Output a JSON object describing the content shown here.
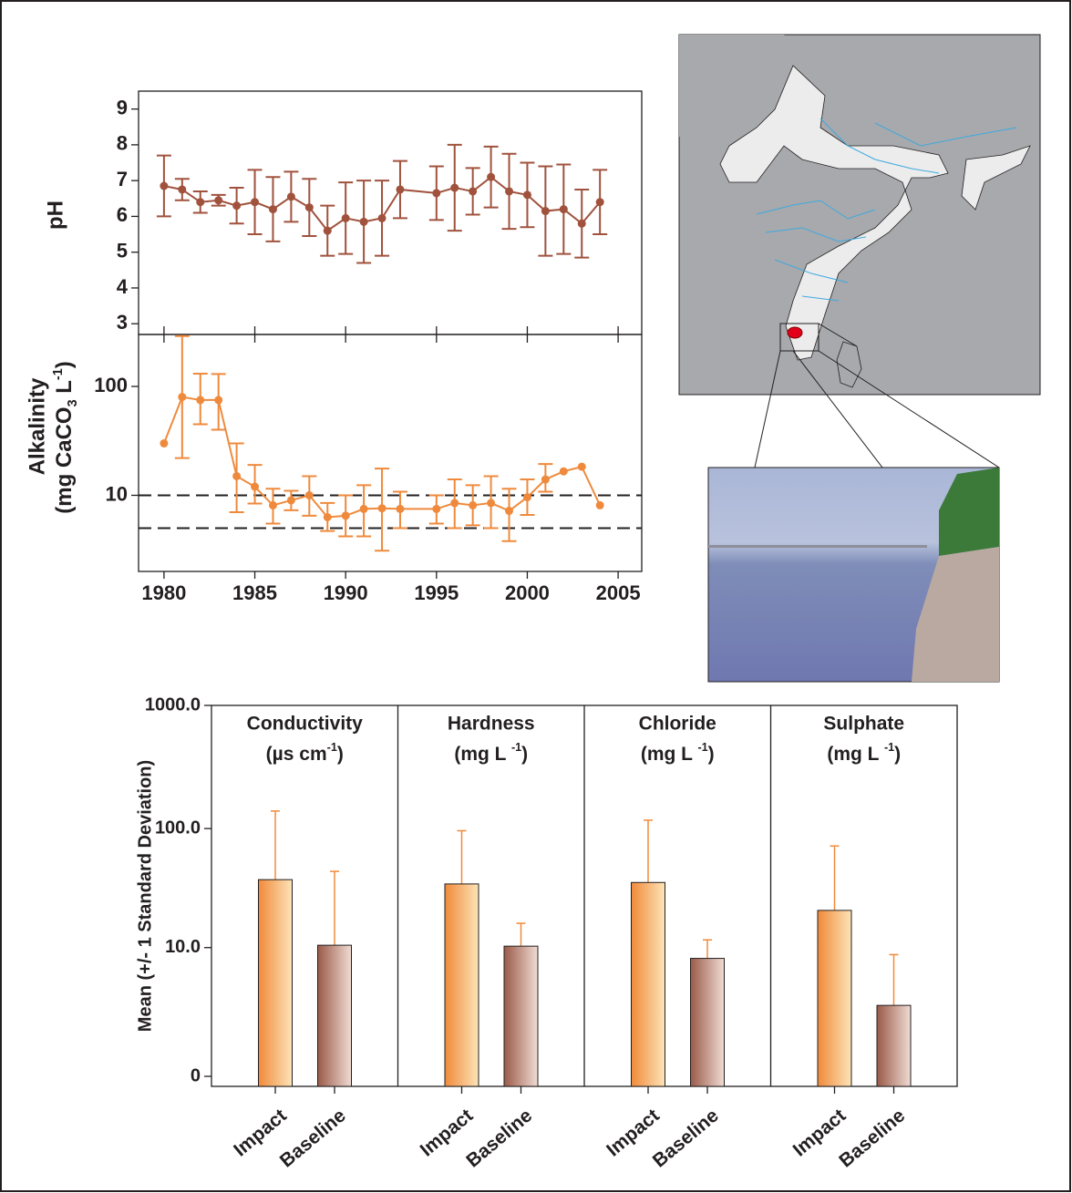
{
  "chart_data": [
    {
      "type": "line",
      "ylabel": "pH",
      "color": "#a0523d",
      "x": [
        1980,
        1981,
        1982,
        1983,
        1984,
        1985,
        1986,
        1987,
        1988,
        1989,
        1990,
        1991,
        1992,
        1993,
        1995,
        1996,
        1997,
        1998,
        1999,
        2000,
        2001,
        2002,
        2003,
        2004
      ],
      "values": [
        6.85,
        6.75,
        6.4,
        6.45,
        6.3,
        6.4,
        6.2,
        6.55,
        6.25,
        5.6,
        5.95,
        5.85,
        5.95,
        6.75,
        6.65,
        6.8,
        6.7,
        7.1,
        6.7,
        6.6,
        6.15,
        6.2,
        5.8,
        6.4
      ],
      "errors": [
        0.85,
        0.3,
        0.3,
        0.15,
        0.5,
        0.9,
        0.9,
        0.7,
        0.8,
        0.7,
        1.0,
        1.15,
        1.05,
        0.8,
        0.75,
        1.2,
        0.65,
        0.85,
        1.05,
        0.9,
        1.25,
        1.25,
        0.95,
        0.9
      ],
      "xlim": [
        1978.6,
        2006.3
      ],
      "ylim": [
        2.7,
        9.5
      ],
      "yticks": [
        3,
        4,
        5,
        6,
        7,
        8,
        9
      ]
    },
    {
      "type": "line",
      "ylabel": "Alkalinity",
      "ylabel_unit": [
        "(mg CaCO",
        "3",
        " L",
        "-1",
        ")"
      ],
      "color": "#ef8a3c",
      "x": [
        1980,
        1981,
        1982,
        1983,
        1984,
        1985,
        1986,
        1987,
        1988,
        1989,
        1990,
        1991,
        1992,
        1993,
        1995,
        1996,
        1997,
        1998,
        1999,
        2000,
        2001,
        2002,
        2003,
        2004
      ],
      "values": [
        30,
        80,
        75,
        75,
        15,
        12,
        8.1,
        9,
        10,
        6.3,
        6.5,
        7.5,
        7.6,
        7.5,
        7.5,
        8.5,
        8.1,
        8.5,
        7.2,
        9.6,
        14,
        16.6,
        18.3,
        8.1
      ],
      "error_lower": [
        null,
        22,
        45,
        40,
        7,
        8.4,
        5.5,
        7.3,
        6.5,
        4.7,
        4.2,
        4.2,
        3.1,
        5,
        5.5,
        5,
        5.3,
        5,
        3.8,
        6.6,
        10.8,
        null,
        null,
        null
      ],
      "error_upper": [
        null,
        290,
        131,
        130,
        30,
        19,
        11.5,
        11,
        15,
        8.5,
        10,
        12.4,
        17.6,
        10.8,
        10,
        14,
        12.4,
        15,
        11.5,
        14,
        19.4,
        null,
        null,
        null
      ],
      "reference_lines": [
        10,
        5
      ],
      "xlim": [
        1978.6,
        2006.3
      ],
      "xticks": [
        1980,
        1985,
        1990,
        1995,
        2000,
        2005
      ],
      "ylim": [
        2,
        300
      ],
      "yscale": "log",
      "yticks": [
        10,
        100
      ]
    },
    {
      "type": "bar",
      "ylabel": "Mean (+/- 1 Standard Deviation)",
      "panels": [
        {
          "title": "Conductivity",
          "unit": [
            "(µs  cm",
            "-1",
            ")"
          ]
        },
        {
          "title": "Hardness",
          "unit": [
            "(mg L ",
            "-1",
            ")"
          ]
        },
        {
          "title": "Chloride",
          "unit": [
            "(mg L ",
            "-1",
            ")"
          ]
        },
        {
          "title": "Sulphate",
          "unit": [
            "(mg L ",
            "-1",
            ")"
          ]
        }
      ],
      "series": [
        {
          "name": "Impact",
          "color": "#f08a3a",
          "values": [
            38,
            35,
            36,
            21
          ],
          "errors": [
            101,
            61,
            81,
            51
          ]
        },
        {
          "name": "Baseline",
          "color": "#9a5a48",
          "values": [
            10.5,
            10.3,
            8,
            2.75
          ],
          "errors": [
            34,
            6,
            3.7,
            5.9
          ]
        }
      ],
      "ylim": [
        0,
        1000
      ],
      "yscale": "log1p",
      "yticks": [
        {
          "value": 1000,
          "label": "1000.0"
        },
        {
          "value": 100,
          "label": "100.0"
        },
        {
          "value": 10,
          "label": "10.0"
        },
        0
      ]
    }
  ]
}
